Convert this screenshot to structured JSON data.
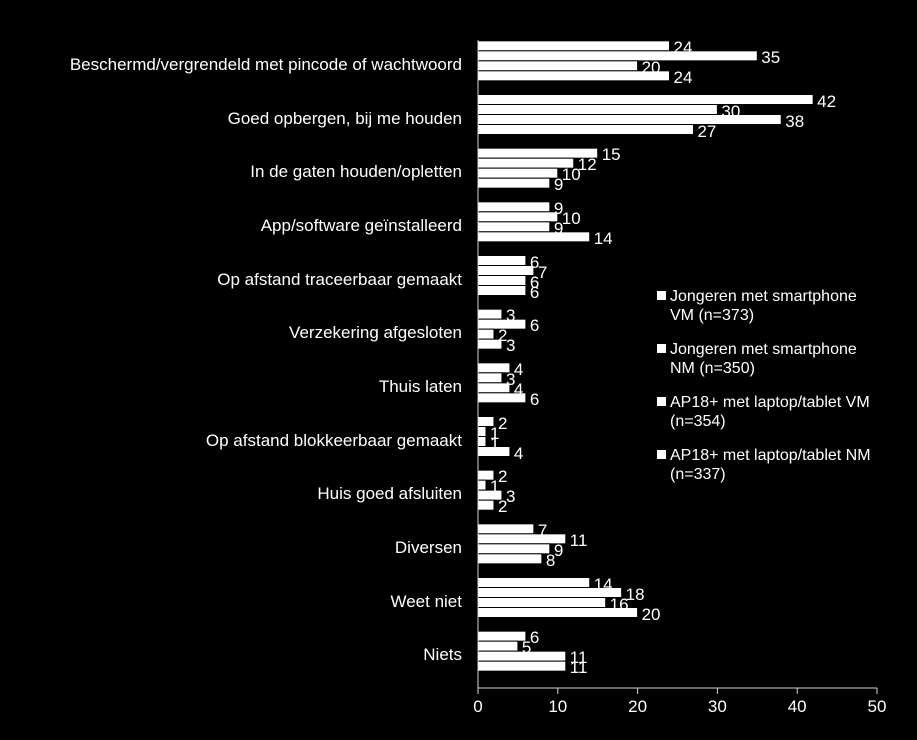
{
  "chart_data": {
    "type": "bar",
    "orientation": "horizontal",
    "categories": [
      "Beschermd/vergrendeld met pincode of wachtwoord",
      "Goed opbergen, bij me houden",
      "In de gaten houden/opletten",
      "App/software geïnstalleerd",
      "Op afstand traceerbaar gemaakt",
      "Verzekering afgesloten",
      "Thuis laten",
      "Op afstand blokkeerbaar gemaakt",
      "Huis goed afsluiten",
      "Diversen",
      "Weet niet",
      "Niets"
    ],
    "series": [
      {
        "name": "Jongeren met smartphone VM (n=373)",
        "color": "#ffffff",
        "values": [
          24,
          42,
          15,
          9,
          6,
          3,
          4,
          2,
          2,
          7,
          14,
          6
        ]
      },
      {
        "name": "Jongeren met smartphone NM (n=350)",
        "color": "#ffffff",
        "values": [
          35,
          30,
          12,
          10,
          7,
          6,
          3,
          1,
          1,
          11,
          18,
          5
        ]
      },
      {
        "name": "AP18+ met laptop/tablet VM (n=354)",
        "color": "#ffffff",
        "values": [
          20,
          38,
          10,
          9,
          6,
          2,
          4,
          1,
          3,
          9,
          16,
          11
        ]
      },
      {
        "name": "AP18+ met laptop/tablet NM (n=337)",
        "color": "#ffffff",
        "values": [
          24,
          27,
          9,
          14,
          6,
          3,
          6,
          4,
          2,
          8,
          20,
          11
        ]
      }
    ],
    "xlim": [
      0,
      50
    ],
    "xticks": [
      0,
      10,
      20,
      30,
      40,
      50
    ],
    "legend": "right"
  }
}
